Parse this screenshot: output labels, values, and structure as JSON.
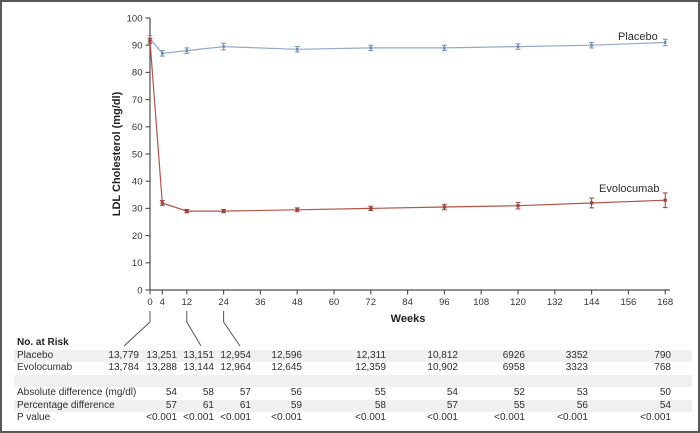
{
  "chart_data": {
    "type": "line",
    "xlabel": "Weeks",
    "ylabel": "LDL Cholesterol (mg/dl)",
    "xlim": [
      0,
      168
    ],
    "ylim": [
      0,
      100
    ],
    "x_ticks": [
      0,
      4,
      12,
      24,
      36,
      48,
      60,
      72,
      84,
      96,
      108,
      120,
      132,
      144,
      156,
      168
    ],
    "y_ticks": [
      0,
      10,
      20,
      30,
      40,
      50,
      60,
      70,
      80,
      90,
      100
    ],
    "grid": false,
    "legend_position": "inline-end-labels",
    "series": [
      {
        "name": "Placebo",
        "color": "#93aacb",
        "accent": "#6d8cb5",
        "x": [
          0,
          4,
          12,
          24,
          48,
          72,
          96,
          120,
          144,
          168
        ],
        "values": [
          92.5,
          87,
          88,
          89.5,
          88.5,
          89,
          89,
          89.5,
          90,
          91
        ],
        "err": [
          1,
          1,
          1,
          1.2,
          1,
          1,
          1,
          1,
          1,
          1.2
        ]
      },
      {
        "name": "Evolocumab",
        "color": "#b25548",
        "accent": "#9e4337",
        "x": [
          0,
          4,
          12,
          24,
          48,
          72,
          96,
          120,
          144,
          168
        ],
        "values": [
          91.5,
          32,
          29,
          29,
          29.5,
          30,
          30.5,
          31,
          32,
          33
        ],
        "err": [
          0.9,
          0.9,
          0.6,
          0.6,
          0.7,
          0.8,
          1,
          1.2,
          1.8,
          2.7
        ]
      }
    ]
  },
  "annotations": {
    "placebo_label": "Placebo",
    "evolocumab_label": "Evolocumab"
  },
  "table": {
    "header": "No. at Risk",
    "columns_weeks": [
      0,
      4,
      12,
      24,
      48,
      72,
      96,
      120,
      144,
      168
    ],
    "rows": [
      {
        "label": "Placebo",
        "values": [
          "13,779",
          "13,251",
          "13,151",
          "12,954",
          "12,596",
          "12,311",
          "10,812",
          "6926",
          "3352",
          "790"
        ]
      },
      {
        "label": "Evolocumab",
        "values": [
          "13,784",
          "13,288",
          "13,144",
          "12,964",
          "12,645",
          "12,359",
          "10,902",
          "6958",
          "3323",
          "768"
        ]
      },
      {
        "label": "Absolute difference (mg/dl)",
        "values": [
          "",
          "54",
          "58",
          "57",
          "56",
          "55",
          "54",
          "52",
          "53",
          "50"
        ]
      },
      {
        "label": "Percentage difference",
        "values": [
          "",
          "57",
          "61",
          "61",
          "59",
          "58",
          "57",
          "55",
          "56",
          "54"
        ]
      },
      {
        "label": "P value",
        "values": [
          "",
          "<0.001",
          "<0.001",
          "<0.001",
          "<0.001",
          "<0.001",
          "<0.001",
          "<0.001",
          "<0.001",
          "<0.001"
        ]
      }
    ]
  },
  "colors": {
    "placebo_line": "#93aacb",
    "evolocumab_line": "#b25548",
    "table_stripe": "#f0f0f1",
    "axis": "#4d4d4d",
    "text": "#2e2e2e",
    "figure_border": "#58585b"
  }
}
